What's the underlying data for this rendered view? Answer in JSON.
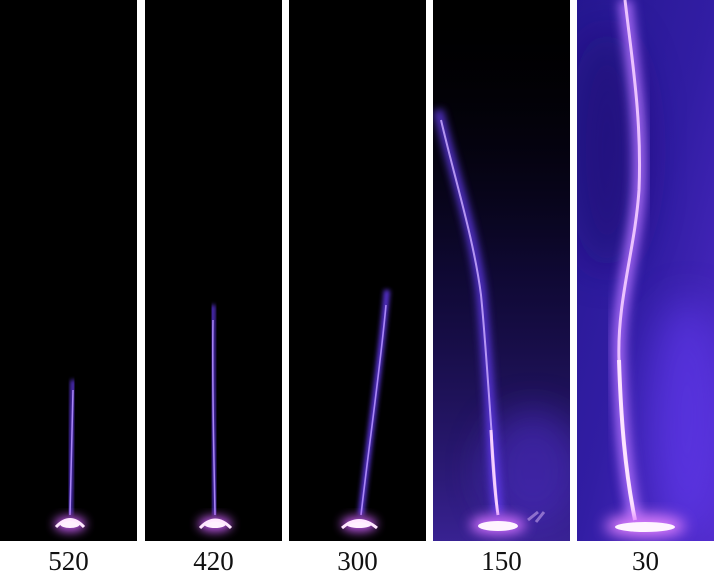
{
  "panels": [
    {
      "label": "520"
    },
    {
      "label": "420"
    },
    {
      "label": "300"
    },
    {
      "label": "150"
    },
    {
      "label": "30"
    }
  ],
  "colors": {
    "background": "#000000",
    "plasma_core": "#ffe6ff",
    "plasma_glow": "#8a3cff",
    "plasma_haze": "#3a1fb0",
    "divider": "#ffffff"
  }
}
